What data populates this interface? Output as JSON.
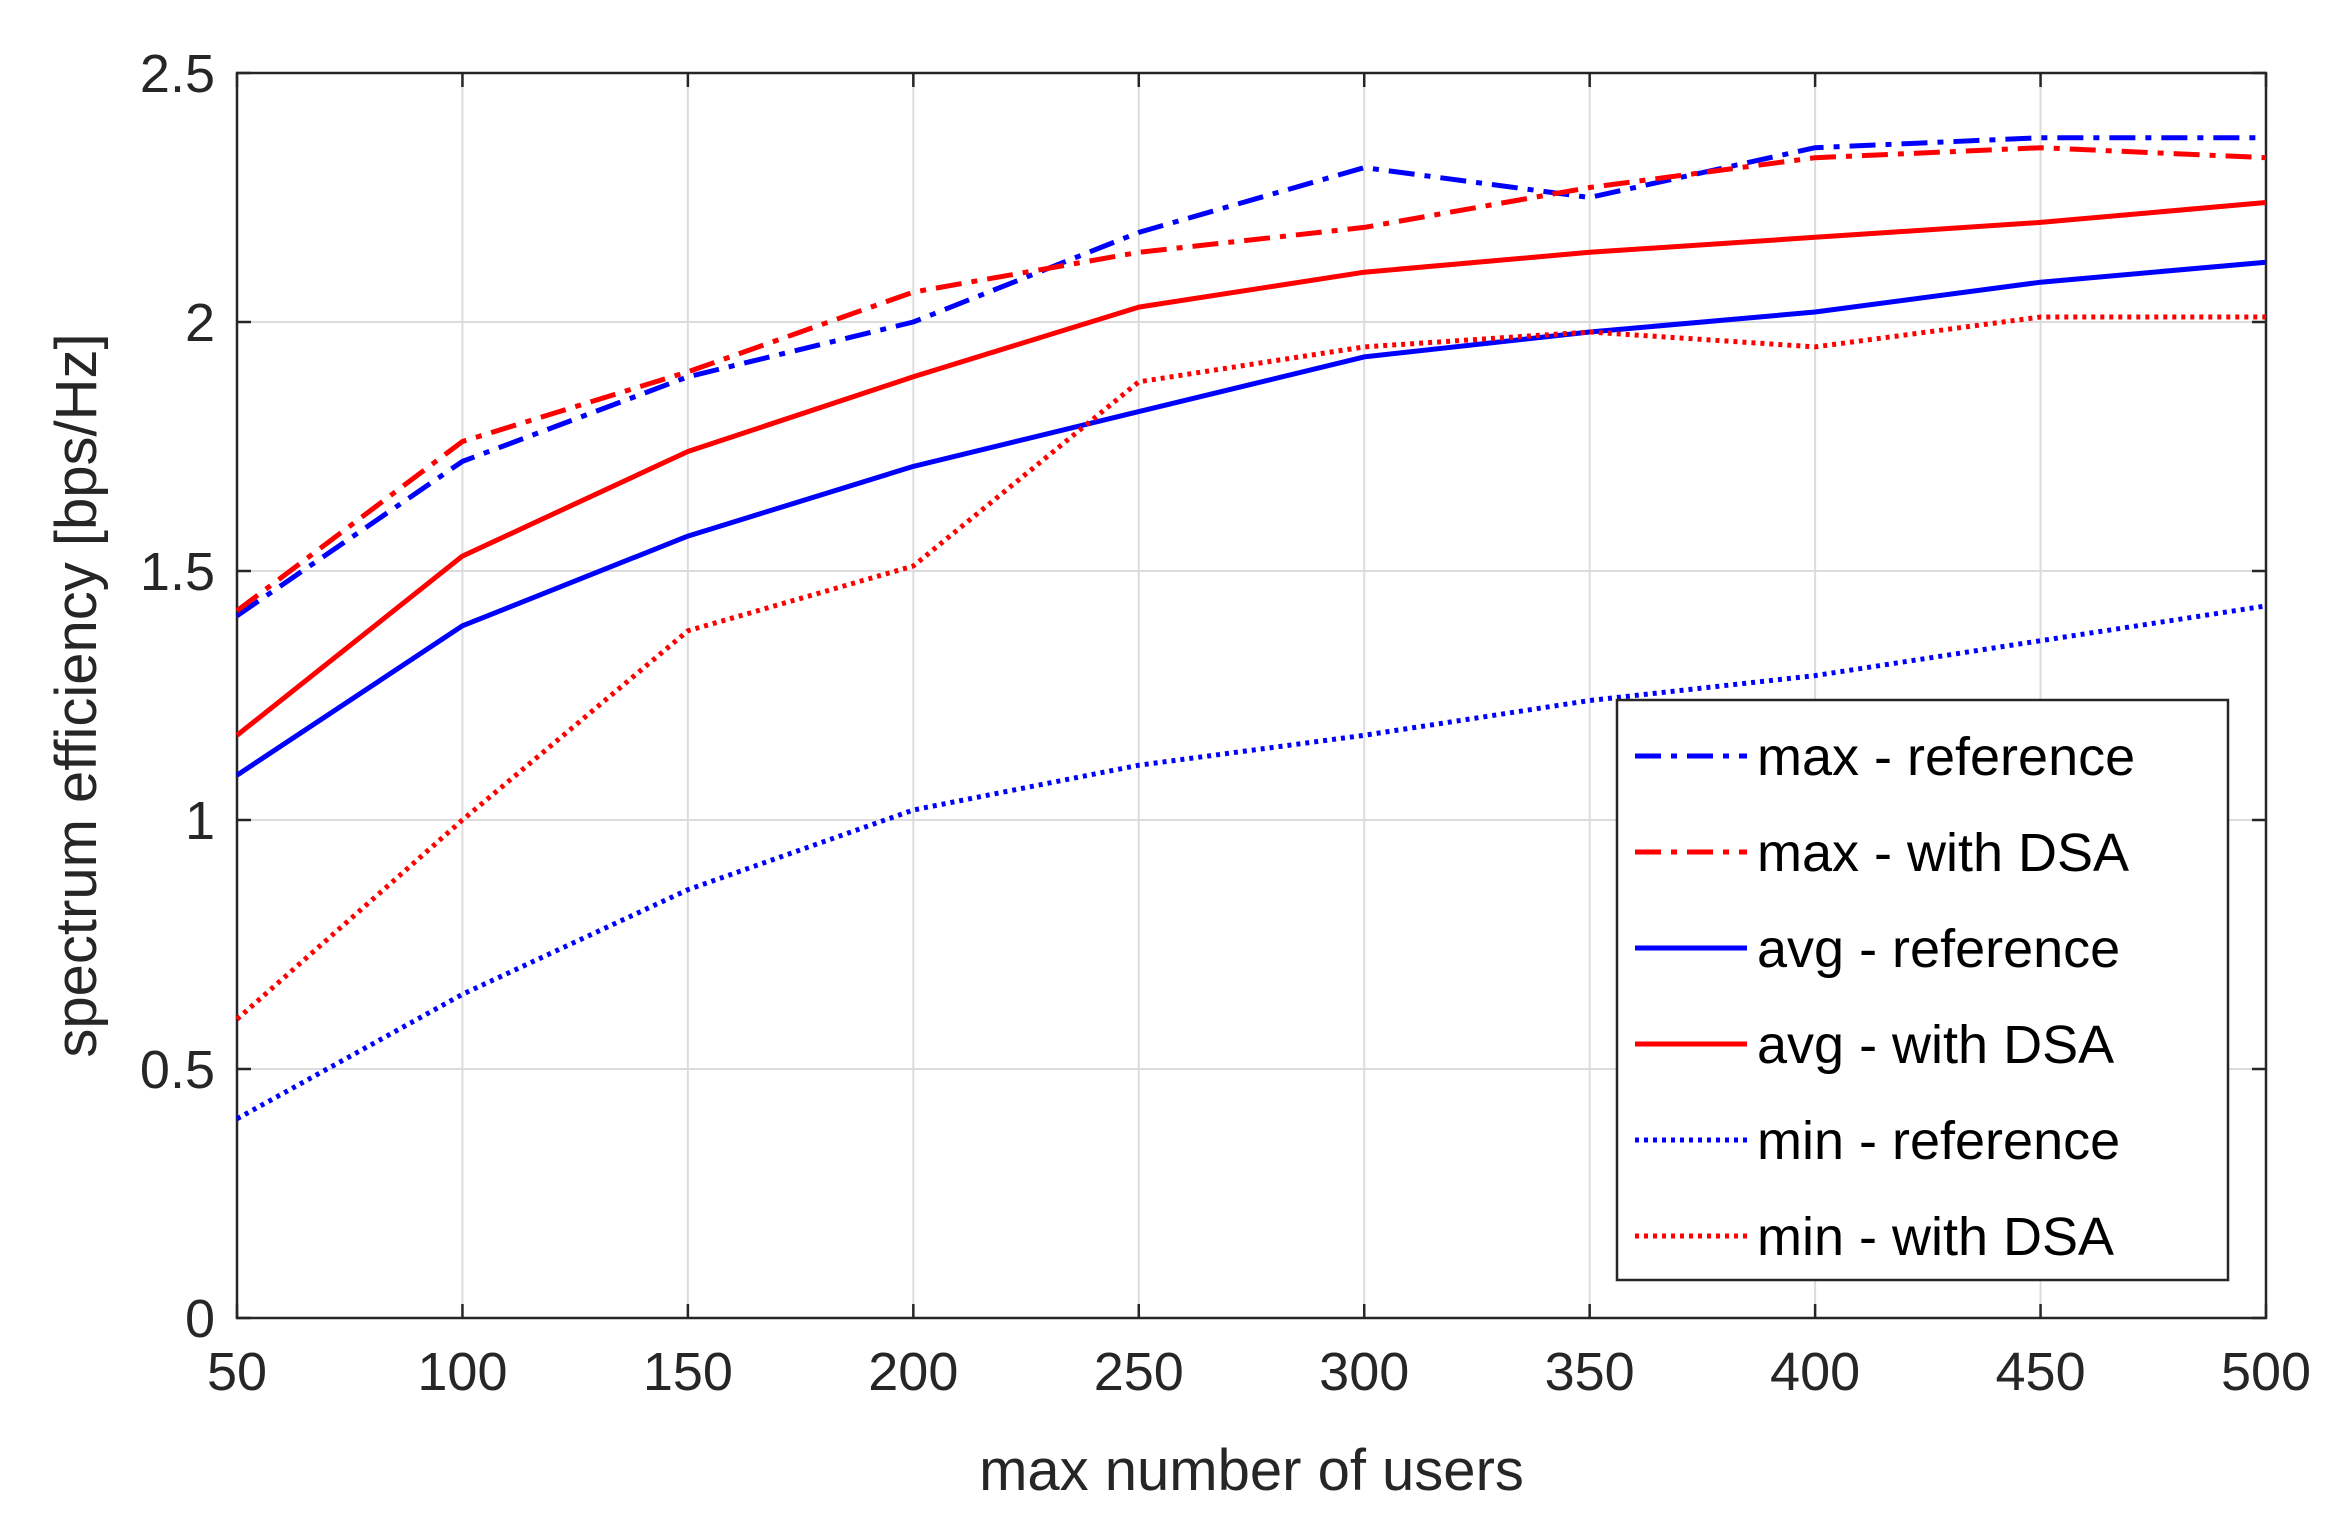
{
  "chart_data": {
    "type": "line",
    "title": "",
    "xlabel": "max number of users",
    "ylabel": "spectrum efficiency [bps/Hz]",
    "xlim": [
      50,
      500
    ],
    "ylim": [
      0,
      2.5
    ],
    "grid": true,
    "legend_position": "bottom-right",
    "x": [
      50,
      100,
      150,
      200,
      250,
      300,
      350,
      400,
      450,
      500
    ],
    "xticks": [
      "50",
      "100",
      "150",
      "200",
      "250",
      "300",
      "350",
      "400",
      "450",
      "500"
    ],
    "yticks": [
      "0",
      "0.5",
      "1",
      "1.5",
      "2",
      "2.5"
    ],
    "series": [
      {
        "name": "max - reference",
        "color": "#0000ff",
        "style": "dashdot",
        "values": [
          1.41,
          1.72,
          1.89,
          2.0,
          2.18,
          2.31,
          2.25,
          2.35,
          2.37,
          2.37
        ]
      },
      {
        "name": "max - with DSA",
        "color": "#ff0000",
        "style": "dashdot",
        "values": [
          1.42,
          1.76,
          1.9,
          2.06,
          2.14,
          2.19,
          2.27,
          2.33,
          2.35,
          2.33
        ]
      },
      {
        "name": "avg - reference",
        "color": "#0000ff",
        "style": "solid",
        "values": [
          1.09,
          1.39,
          1.57,
          1.71,
          1.82,
          1.93,
          1.98,
          2.02,
          2.08,
          2.12
        ]
      },
      {
        "name": "avg - with DSA",
        "color": "#ff0000",
        "style": "solid",
        "values": [
          1.17,
          1.53,
          1.74,
          1.89,
          2.03,
          2.1,
          2.14,
          2.17,
          2.2,
          2.24
        ]
      },
      {
        "name": "min - reference",
        "color": "#0000ff",
        "style": "dotted",
        "values": [
          0.4,
          0.65,
          0.86,
          1.02,
          1.11,
          1.17,
          1.24,
          1.29,
          1.36,
          1.43
        ]
      },
      {
        "name": "min - with DSA",
        "color": "#ff0000",
        "style": "dotted",
        "values": [
          0.6,
          1.0,
          1.38,
          1.51,
          1.88,
          1.95,
          1.98,
          1.95,
          2.01,
          2.01
        ]
      }
    ]
  }
}
